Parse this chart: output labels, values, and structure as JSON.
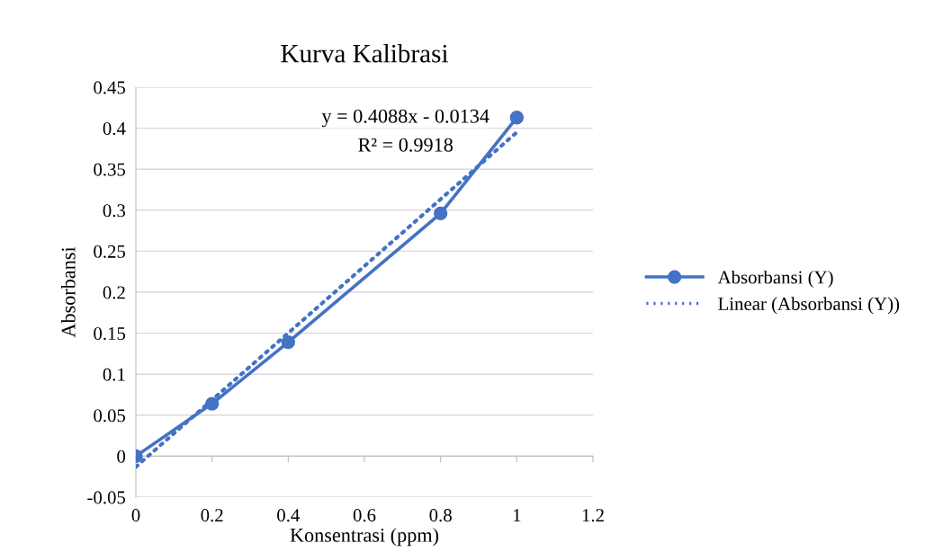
{
  "chart_data": {
    "type": "line",
    "title": "Kurva Kalibrasi",
    "xlabel": "Konsentrasi (ppm)",
    "ylabel": "Absorbansi",
    "x": [
      0,
      0.2,
      0.4,
      0.8,
      1
    ],
    "series": [
      {
        "name": "Absorbansi (Y)",
        "color": "#4472c4",
        "values": [
          0,
          0.064,
          0.139,
          0.296,
          0.413
        ],
        "marker": "circle",
        "line_style": "solid"
      },
      {
        "name": "Linear (Absorbansi (Y))",
        "color": "#4472c4",
        "x": [
          0,
          1
        ],
        "values": [
          -0.013,
          0.395
        ],
        "marker": "none",
        "line_style": "dotted"
      }
    ],
    "annotations": [
      "y = 0.4088x - 0.0134",
      "R² = 0.9918"
    ],
    "xlim": [
      0,
      1.2
    ],
    "xticks": [
      0,
      0.2,
      0.4,
      0.6,
      0.8,
      1,
      1.2
    ],
    "ylim": [
      -0.05,
      0.45
    ],
    "yticks": [
      -0.05,
      0,
      0.05,
      0.1,
      0.15,
      0.2,
      0.25,
      0.3,
      0.35,
      0.4,
      0.45
    ],
    "grid": "y",
    "legend": "right"
  }
}
